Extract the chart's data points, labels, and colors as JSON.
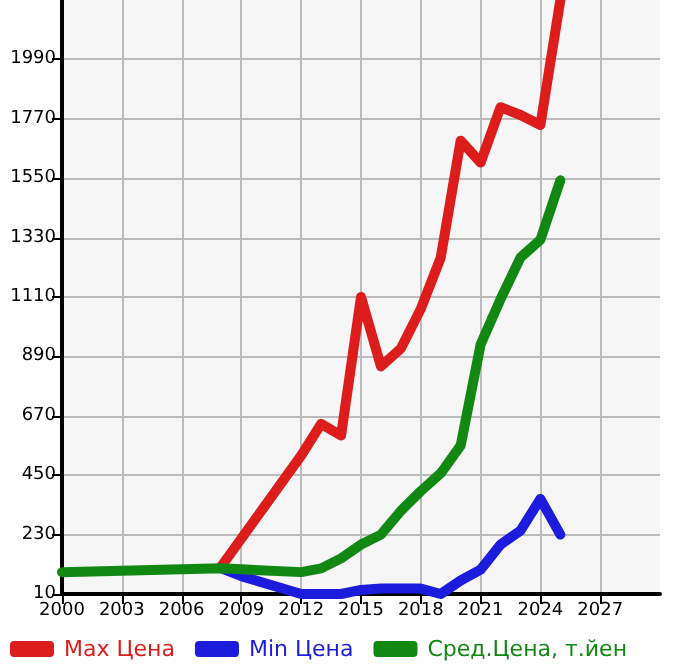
{
  "chart_data": {
    "type": "line",
    "series": [
      {
        "name": "Max Цена",
        "color": "#dd1c1c",
        "x": [
          2008,
          2012,
          2013,
          2014,
          2015,
          2016,
          2017,
          2018,
          2019,
          2020,
          2021,
          2022,
          2023,
          2024,
          2025
        ],
        "values": [
          113,
          523,
          640,
          597,
          1110,
          853,
          919,
          1066,
          1256,
          1689,
          1608,
          1813,
          1784,
          1747,
          2210
        ]
      },
      {
        "name": "Min Цена",
        "color": "#1c1cdd",
        "x": [
          2008,
          2009,
          2012,
          2013,
          2014,
          2015,
          2016,
          2017,
          2018,
          2019,
          2020,
          2021,
          2022,
          2023,
          2024,
          2025
        ],
        "values": [
          105,
          76,
          10,
          10,
          10,
          25,
          30,
          30,
          30,
          10,
          60,
          100,
          193,
          245,
          362,
          230
        ]
      },
      {
        "name": "Сред.Цена, т.йен",
        "color": "#118811",
        "x": [
          2000,
          2008,
          2012,
          2013,
          2014,
          2015,
          2016,
          2017,
          2018,
          2019,
          2020,
          2021,
          2022,
          2023,
          2024,
          2025
        ],
        "values": [
          91,
          105,
          91,
          105,
          142,
          193,
          230,
          318,
          391,
          457,
          560,
          934,
          1102,
          1256,
          1322,
          1542
        ]
      }
    ],
    "xlim": [
      2000,
      2030
    ],
    "xticks": [
      2000,
      2003,
      2006,
      2009,
      2012,
      2015,
      2018,
      2021,
      2024,
      2027
    ],
    "ylim": [
      10,
      2210
    ],
    "yticks": [
      10,
      230,
      450,
      670,
      890,
      1110,
      1330,
      1550,
      1770,
      1990
    ],
    "grid": true,
    "legend": "bottom",
    "marker": "none",
    "line_style": "solid"
  }
}
